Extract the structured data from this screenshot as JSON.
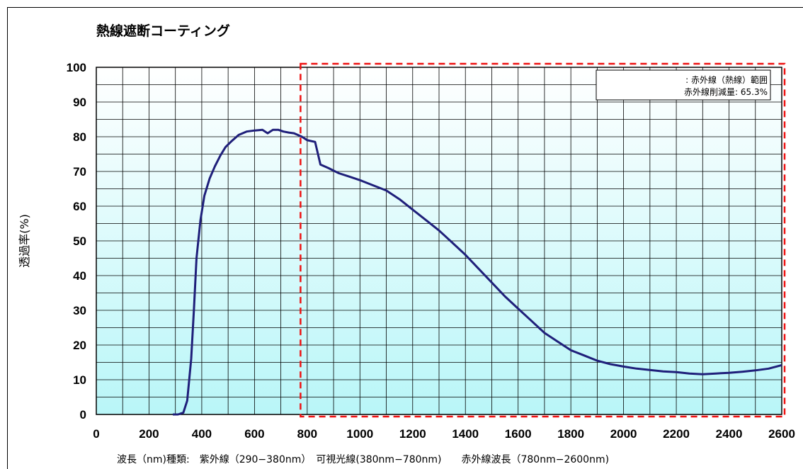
{
  "chart_data": {
    "type": "line",
    "title": "熱線遮断コーティング",
    "ylabel": "透過率(%)",
    "xlabel": "波長（nm)種類:　紫外線（290−380nm）　可視光線(380nm−780nm)　　赤外線波長（780nm−2600nm)",
    "xlim": [
      0,
      2600
    ],
    "ylim": [
      0,
      100
    ],
    "x_ticks": [
      0,
      200,
      400,
      600,
      800,
      1000,
      1200,
      1400,
      1600,
      1800,
      2000,
      2200,
      2400,
      2600
    ],
    "y_ticks": [
      0,
      10,
      20,
      30,
      40,
      50,
      60,
      70,
      80,
      90,
      100
    ],
    "grid": true,
    "highlight_region": {
      "x_from": 780,
      "x_to": 2600,
      "style": "red dashed box"
    },
    "legend": {
      "position": "top-right",
      "line1": ": 赤外線（熱線）範囲",
      "line2": "赤外線削減量: 65.3%"
    },
    "series": [
      {
        "color": "#1f1f7a",
        "x": [
          290,
          310,
          330,
          345,
          360,
          370,
          380,
          395,
          410,
          430,
          450,
          470,
          490,
          510,
          540,
          570,
          600,
          630,
          650,
          670,
          690,
          710,
          730,
          750,
          780,
          800,
          830,
          850,
          880,
          920,
          960,
          1000,
          1050,
          1100,
          1150,
          1200,
          1250,
          1300,
          1350,
          1400,
          1450,
          1500,
          1550,
          1600,
          1650,
          1700,
          1750,
          1800,
          1850,
          1900,
          1950,
          2000,
          2050,
          2100,
          2150,
          2200,
          2250,
          2300,
          2350,
          2400,
          2450,
          2500,
          2550,
          2600
        ],
        "y": [
          0,
          0,
          0.5,
          4,
          16,
          30,
          45,
          56,
          63,
          68,
          71.5,
          74.5,
          77,
          78.5,
          80.5,
          81.5,
          81.8,
          82,
          81,
          82,
          82,
          81.5,
          81.2,
          81,
          80,
          79,
          78.5,
          72,
          71,
          69.5,
          68.5,
          67.5,
          66,
          64.5,
          62,
          59,
          56,
          53,
          49.5,
          46,
          42,
          38,
          34,
          30.5,
          27,
          23.5,
          21,
          18.5,
          17,
          15.5,
          14.5,
          13.8,
          13.2,
          12.8,
          12.4,
          12.2,
          11.8,
          11.6,
          11.8,
          12,
          12.3,
          12.7,
          13.2,
          14.2
        ]
      }
    ]
  }
}
